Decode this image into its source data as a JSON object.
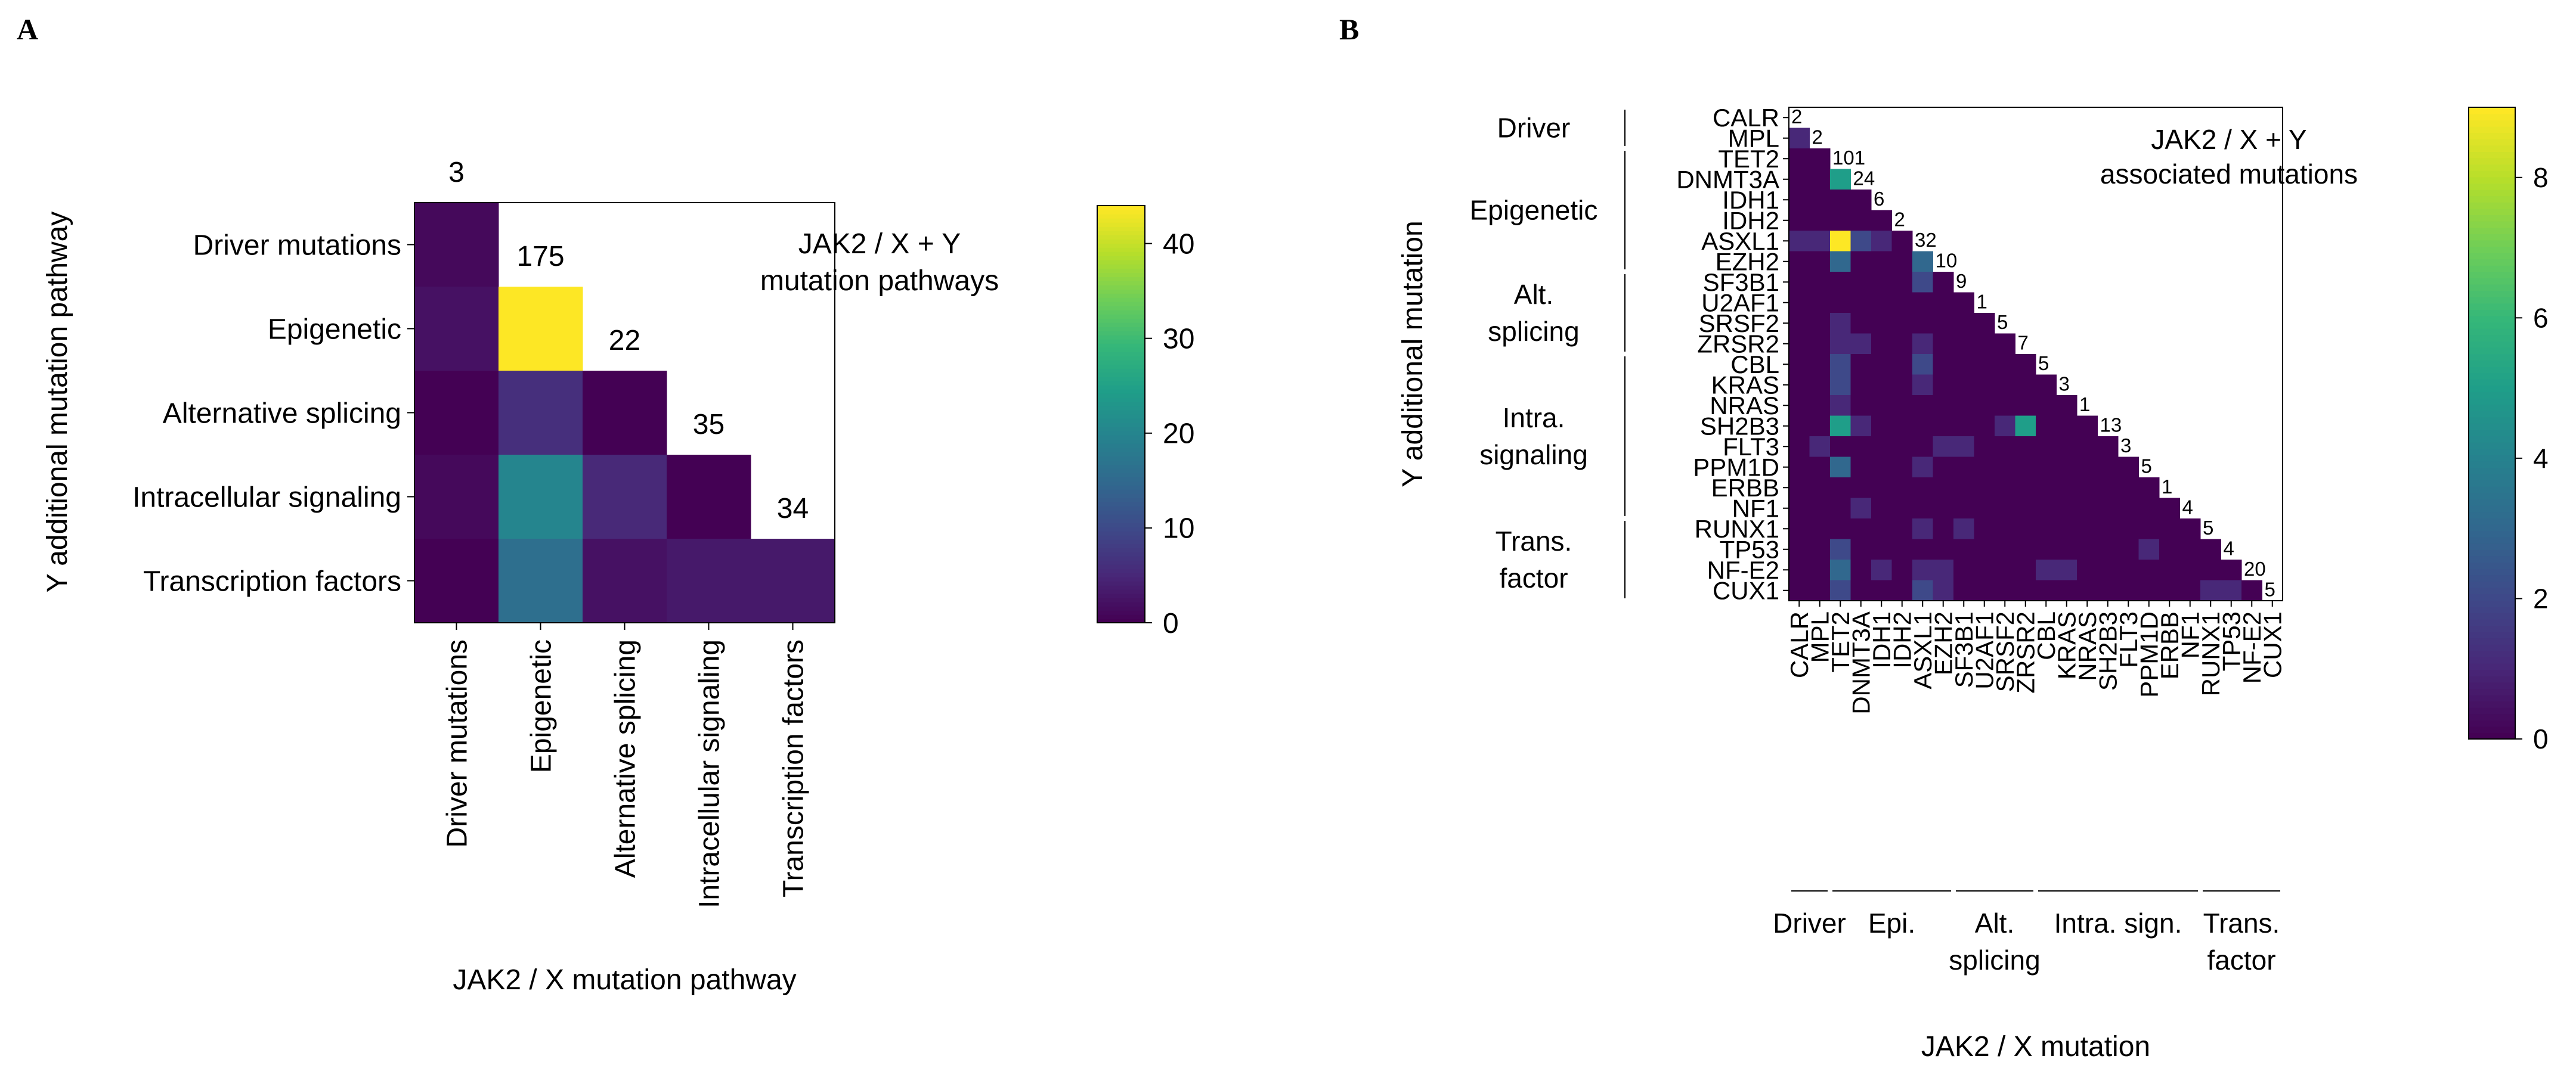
{
  "chart_data": [
    {
      "panel_label": "A",
      "type": "heatmap",
      "title": "JAK2 / X + Y mutation pathways",
      "title_lines": [
        "JAK2 / X + Y",
        "mutation pathways"
      ],
      "xlabel": "JAK2 / X mutation pathway",
      "ylabel": "Y additional mutation pathway",
      "categories": [
        "Driver mutations",
        "Epigenetic",
        "Alternative splicing",
        "Intracellular signaling",
        "Transcription factors"
      ],
      "diagonal_totals": [
        3,
        175,
        22,
        35,
        34
      ],
      "matrix": [
        [
          1,
          null,
          null,
          null,
          null
        ],
        [
          2,
          44,
          null,
          null,
          null
        ],
        [
          0,
          6,
          0,
          null,
          null
        ],
        [
          1,
          20,
          5,
          0,
          null
        ],
        [
          0,
          16,
          2,
          3,
          3
        ]
      ],
      "colorbar": {
        "min": 0,
        "max": 44,
        "ticks": [
          0,
          10,
          20,
          30,
          40
        ]
      }
    },
    {
      "panel_label": "B",
      "type": "heatmap",
      "title": "JAK2 / X + Y associated mutations",
      "title_lines": [
        "JAK2 / X + Y",
        "associated mutations"
      ],
      "xlabel": "JAK2 / X mutation",
      "ylabel": "Y additional mutation",
      "genes": [
        "CALR",
        "MPL",
        "TET2",
        "DNMT3A",
        "IDH1",
        "IDH2",
        "ASXL1",
        "EZH2",
        "SF3B1",
        "U2AF1",
        "SRSF2",
        "ZRSR2",
        "CBL",
        "KRAS",
        "NRAS",
        "SH2B3",
        "FLT3",
        "PPM1D",
        "ERBB",
        "NF1",
        "RUNX1",
        "TP53",
        "NF-E2",
        "CUX1"
      ],
      "diagonal_totals": [
        "2",
        "2",
        "101",
        "24",
        "6",
        "2",
        "32",
        "10",
        "9",
        "1",
        "5",
        "7",
        "5",
        "3",
        "1",
        "13",
        "3",
        "5",
        "1",
        "4",
        "5",
        "4",
        "20",
        "5"
      ],
      "nonzero_cells": [
        {
          "row": "MPL",
          "col": "CALR",
          "value": 1
        },
        {
          "row": "ASXL1",
          "col": "CALR",
          "value": 1
        },
        {
          "row": "ASXL1",
          "col": "MPL",
          "value": 1
        },
        {
          "row": "ASXL1",
          "col": "TET2",
          "value": 9
        },
        {
          "row": "ASXL1",
          "col": "DNMT3A",
          "value": 2
        },
        {
          "row": "ASXL1",
          "col": "IDH1",
          "value": 1
        },
        {
          "row": "DNMT3A",
          "col": "TET2",
          "value": 5
        },
        {
          "row": "EZH2",
          "col": "TET2",
          "value": 3
        },
        {
          "row": "EZH2",
          "col": "ASXL1",
          "value": 3
        },
        {
          "row": "SF3B1",
          "col": "ASXL1",
          "value": 2
        },
        {
          "row": "SRSF2",
          "col": "TET2",
          "value": 1
        },
        {
          "row": "ZRSR2",
          "col": "TET2",
          "value": 1
        },
        {
          "row": "ZRSR2",
          "col": "DNMT3A",
          "value": 1
        },
        {
          "row": "ZRSR2",
          "col": "ASXL1",
          "value": 1
        },
        {
          "row": "CBL",
          "col": "TET2",
          "value": 2
        },
        {
          "row": "CBL",
          "col": "ASXL1",
          "value": 2
        },
        {
          "row": "KRAS",
          "col": "TET2",
          "value": 2
        },
        {
          "row": "KRAS",
          "col": "ASXL1",
          "value": 1
        },
        {
          "row": "NRAS",
          "col": "TET2",
          "value": 1
        },
        {
          "row": "SH2B3",
          "col": "TET2",
          "value": 5
        },
        {
          "row": "SH2B3",
          "col": "DNMT3A",
          "value": 1
        },
        {
          "row": "SH2B3",
          "col": "SRSF2",
          "value": 1
        },
        {
          "row": "SH2B3",
          "col": "ZRSR2",
          "value": 5
        },
        {
          "row": "FLT3",
          "col": "MPL",
          "value": 1
        },
        {
          "row": "FLT3",
          "col": "EZH2",
          "value": 1
        },
        {
          "row": "FLT3",
          "col": "SF3B1",
          "value": 1
        },
        {
          "row": "PPM1D",
          "col": "TET2",
          "value": 3
        },
        {
          "row": "PPM1D",
          "col": "ASXL1",
          "value": 1
        },
        {
          "row": "NF1",
          "col": "DNMT3A",
          "value": 1
        },
        {
          "row": "RUNX1",
          "col": "ASXL1",
          "value": 1
        },
        {
          "row": "RUNX1",
          "col": "SF3B1",
          "value": 1
        },
        {
          "row": "TP53",
          "col": "TET2",
          "value": 2
        },
        {
          "row": "TP53",
          "col": "PPM1D",
          "value": 1
        },
        {
          "row": "NF-E2",
          "col": "TET2",
          "value": 3
        },
        {
          "row": "NF-E2",
          "col": "IDH1",
          "value": 1
        },
        {
          "row": "NF-E2",
          "col": "ASXL1",
          "value": 1
        },
        {
          "row": "NF-E2",
          "col": "EZH2",
          "value": 1
        },
        {
          "row": "NF-E2",
          "col": "CBL",
          "value": 1
        },
        {
          "row": "NF-E2",
          "col": "KRAS",
          "value": 1
        },
        {
          "row": "CUX1",
          "col": "TET2",
          "value": 2
        },
        {
          "row": "CUX1",
          "col": "ASXL1",
          "value": 2
        },
        {
          "row": "CUX1",
          "col": "EZH2",
          "value": 1
        },
        {
          "row": "CUX1",
          "col": "RUNX1",
          "value": 1
        },
        {
          "row": "CUX1",
          "col": "TP53",
          "value": 1
        }
      ],
      "row_groups": [
        {
          "label_lines": [
            "Driver"
          ],
          "first": "CALR",
          "last": "MPL"
        },
        {
          "label_lines": [
            "Epigenetic"
          ],
          "first": "TET2",
          "last": "EZH2"
        },
        {
          "label_lines": [
            "Alt.",
            "splicing"
          ],
          "first": "SF3B1",
          "last": "ZRSR2"
        },
        {
          "label_lines": [
            "Intra.",
            "signaling"
          ],
          "first": "CBL",
          "last": "NF1"
        },
        {
          "label_lines": [
            "Trans.",
            "factor"
          ],
          "first": "RUNX1",
          "last": "CUX1"
        }
      ],
      "col_groups": [
        {
          "label_lines": [
            "Driver"
          ],
          "first": "CALR",
          "last": "MPL"
        },
        {
          "label_lines": [
            "Epi."
          ],
          "first": "TET2",
          "last": "EZH2"
        },
        {
          "label_lines": [
            "Alt.",
            "splicing"
          ],
          "first": "SF3B1",
          "last": "ZRSR2"
        },
        {
          "label_lines": [
            "Intra. sign."
          ],
          "first": "CBL",
          "last": "NF1"
        },
        {
          "label_lines": [
            "Trans.",
            "factor"
          ],
          "first": "RUNX1",
          "last": "CUX1"
        }
      ],
      "colorbar": {
        "min": 0,
        "max": 9,
        "ticks": [
          0,
          2,
          4,
          6,
          8
        ]
      }
    }
  ]
}
